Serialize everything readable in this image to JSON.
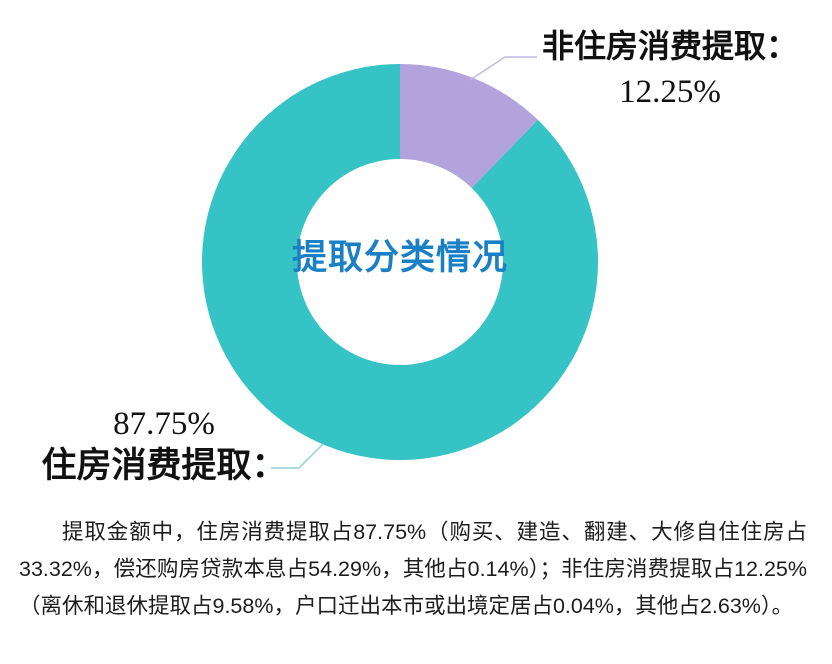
{
  "chart_data": {
    "type": "pie",
    "donut": true,
    "title": "提取分类情况",
    "categories": [
      "非住房消费提取",
      "住房消费提取"
    ],
    "values": [
      12.25,
      87.75
    ],
    "unit": "%",
    "colors": [
      "#b2a3dd",
      "#35c3c5"
    ],
    "center_title_color": "#1a80c6",
    "leader_line_colors": [
      "#c3b8e8",
      "#8ed0d5"
    ],
    "legend_position": "none",
    "labels": {
      "non_housing": {
        "name": "非住房消费提取：",
        "value": "12.25%"
      },
      "housing": {
        "name": "住房消费提取：",
        "value": "87.75%"
      }
    }
  },
  "paragraph": {
    "text": "提取金额中，住房消费提取占87.75%（购买、建造、翻建、大修自住住房占33.32%，偿还购房贷款本息占54.29%，其他占0.14%）；非住房消费提取占12.25%（离休和退休提取占9.58%，户口迁出本市或出境定居占0.04%，其他占2.63%）。"
  }
}
